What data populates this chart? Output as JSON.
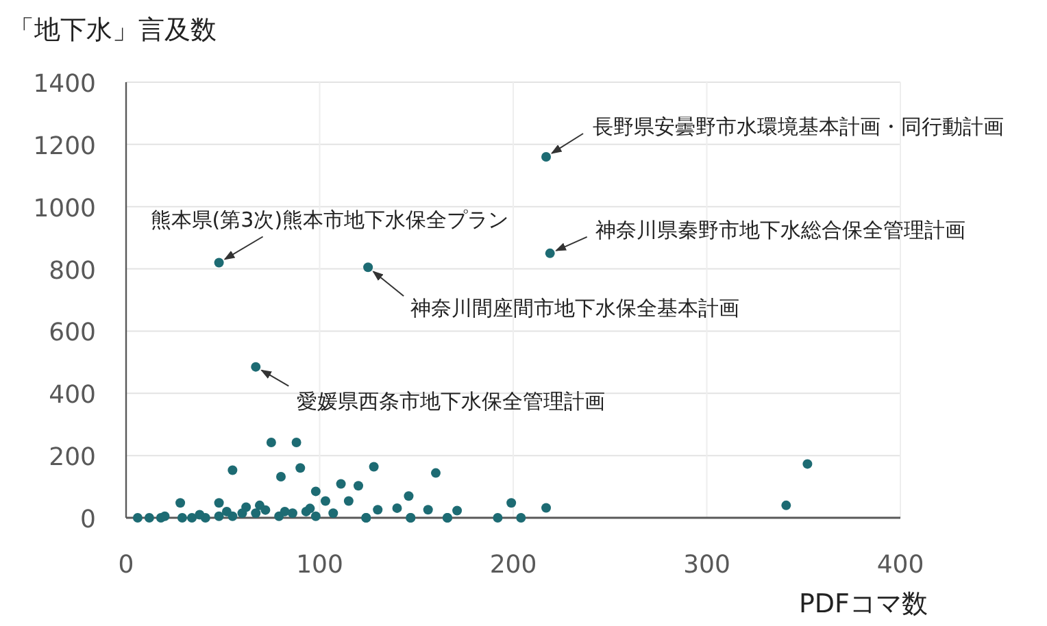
{
  "chart_data": {
    "type": "scatter",
    "ylabel": "「地下水」言及数",
    "xlabel": "PDFコマ数",
    "xlim": [
      0,
      400
    ],
    "ylim": [
      0,
      1400
    ],
    "xticks": [
      0,
      100,
      200,
      300,
      400
    ],
    "yticks": [
      0,
      200,
      400,
      600,
      800,
      1000,
      1200,
      1400
    ],
    "grid": true,
    "marker": "circle",
    "series": [
      {
        "color": "#1d6b73",
        "x": [
          217,
          219,
          48,
          125,
          67,
          75,
          88,
          55,
          80,
          90,
          128,
          160,
          111,
          120,
          98,
          103,
          115,
          146,
          28,
          48,
          62,
          69,
          130,
          140,
          156,
          171,
          199,
          217,
          341,
          352,
          192,
          204,
          166,
          147,
          124,
          6,
          12,
          18,
          29,
          34,
          41,
          48,
          55,
          60,
          67,
          79,
          82,
          86,
          93,
          98,
          107,
          124,
          147,
          166,
          20,
          38,
          52,
          72,
          95
        ],
        "values": [
          1160,
          850,
          820,
          805,
          485,
          242,
          242,
          153,
          132,
          160,
          164,
          144,
          109,
          103,
          85,
          54,
          54,
          70,
          48,
          48,
          34,
          40,
          26,
          31,
          26,
          23,
          48,
          32,
          40,
          173,
          0,
          0,
          0,
          0,
          0,
          0,
          0,
          0,
          0,
          0,
          0,
          5,
          5,
          15,
          15,
          5,
          20,
          15,
          20,
          5,
          15,
          0,
          0,
          0,
          5,
          10,
          20,
          25,
          30
        ]
      }
    ],
    "annotations": [
      {
        "text": "長野県安曇野市水環境基本計画・同行動計画",
        "x": 217,
        "y": 1160
      },
      {
        "text": "神奈川県秦野市地下水総合保全管理計画",
        "x": 219,
        "y": 850
      },
      {
        "text": "熊本県(第3次)熊本市地下水保全プラン",
        "x": 48,
        "y": 820
      },
      {
        "text": "神奈川間座間市地下水保全基本計画",
        "x": 125,
        "y": 805
      },
      {
        "text": "愛媛県西条市地下水保全管理計画",
        "x": 67,
        "y": 485
      }
    ]
  }
}
